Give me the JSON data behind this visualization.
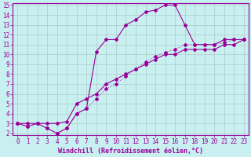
{
  "xlabel": "Windchill (Refroidissement éolien,°C)",
  "bg_color": "#c8f0f0",
  "line_color": "#990099",
  "grid_color": "#b0c8c8",
  "xlim": [
    -0.5,
    23.5
  ],
  "ylim": [
    1.8,
    15.2
  ],
  "xticks": [
    0,
    1,
    2,
    3,
    4,
    5,
    6,
    7,
    8,
    9,
    10,
    11,
    12,
    13,
    14,
    15,
    16,
    17,
    18,
    19,
    20,
    21,
    22,
    23
  ],
  "yticks": [
    2,
    3,
    4,
    5,
    6,
    7,
    8,
    9,
    10,
    11,
    12,
    13,
    14,
    15
  ],
  "curve1_x": [
    0,
    1,
    2,
    3,
    4,
    5,
    6,
    7,
    8,
    9,
    10,
    11,
    12,
    13,
    14,
    15,
    16,
    17,
    18,
    19,
    20,
    21,
    22,
    23
  ],
  "curve1_y": [
    3.0,
    2.7,
    3.0,
    2.5,
    2.0,
    2.5,
    4.0,
    4.5,
    10.3,
    11.5,
    11.5,
    13.0,
    13.5,
    14.3,
    14.5,
    15.0,
    15.0,
    13.0,
    11.0,
    11.0,
    11.0,
    11.5,
    11.5,
    11.5
  ],
  "curve2_x": [
    0,
    1,
    2,
    3,
    4,
    5,
    6,
    7,
    8,
    9,
    10,
    11,
    12,
    13,
    14,
    15,
    16,
    17,
    18,
    19,
    20,
    21,
    22,
    23
  ],
  "curve2_y": [
    3.0,
    3.0,
    3.0,
    3.0,
    3.0,
    3.2,
    5.0,
    5.5,
    6.0,
    7.0,
    7.5,
    8.0,
    8.5,
    9.0,
    9.5,
    10.0,
    10.0,
    10.5,
    10.5,
    10.5,
    10.5,
    11.0,
    11.0,
    11.5
  ],
  "curve3_x": [
    0,
    1,
    2,
    3,
    4,
    5,
    6,
    7,
    8,
    9,
    10,
    11,
    12,
    13,
    14,
    15,
    16,
    17,
    18,
    19,
    20,
    21,
    22,
    23
  ],
  "curve3_y": [
    3.0,
    2.7,
    3.0,
    2.5,
    2.0,
    2.5,
    4.0,
    4.5,
    5.5,
    6.5,
    7.0,
    7.8,
    8.5,
    9.2,
    9.8,
    10.2,
    10.5,
    11.0,
    11.0,
    11.0,
    11.0,
    11.2,
    11.5,
    11.5
  ],
  "font_family": "monospace",
  "tick_fontsize": 5.5,
  "label_fontsize": 6.0,
  "marker": "D",
  "markersize": 2.0,
  "linewidth": 0.8,
  "dotted_linewidth": 0.6
}
